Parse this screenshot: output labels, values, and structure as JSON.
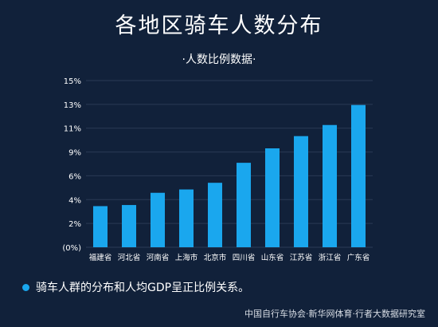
{
  "title": "各地区骑车人数分布",
  "chart_data": {
    "type": "bar",
    "title": "·人数比例数据·",
    "categories": [
      "福建省",
      "河北省",
      "河南省",
      "上海市",
      "北京市",
      "四川省",
      "山东省",
      "江苏省",
      "浙江省",
      "广东省"
    ],
    "values": [
      3.7,
      3.8,
      4.9,
      5.2,
      5.8,
      7.6,
      8.9,
      10.0,
      11.0,
      12.8
    ],
    "y_ticks": [
      "(0%)",
      "2%",
      "4%",
      "6%",
      "9%",
      "11%",
      "13%",
      "15%"
    ],
    "ylim": [
      0,
      15
    ],
    "bar_color": "#1aa7ee",
    "grid_color": "#2a3a55"
  },
  "note": "骑车人群的分布和人均GDP呈正比例关系。",
  "source": "中国自行车协会·新华网体育·行者大数据研究室"
}
